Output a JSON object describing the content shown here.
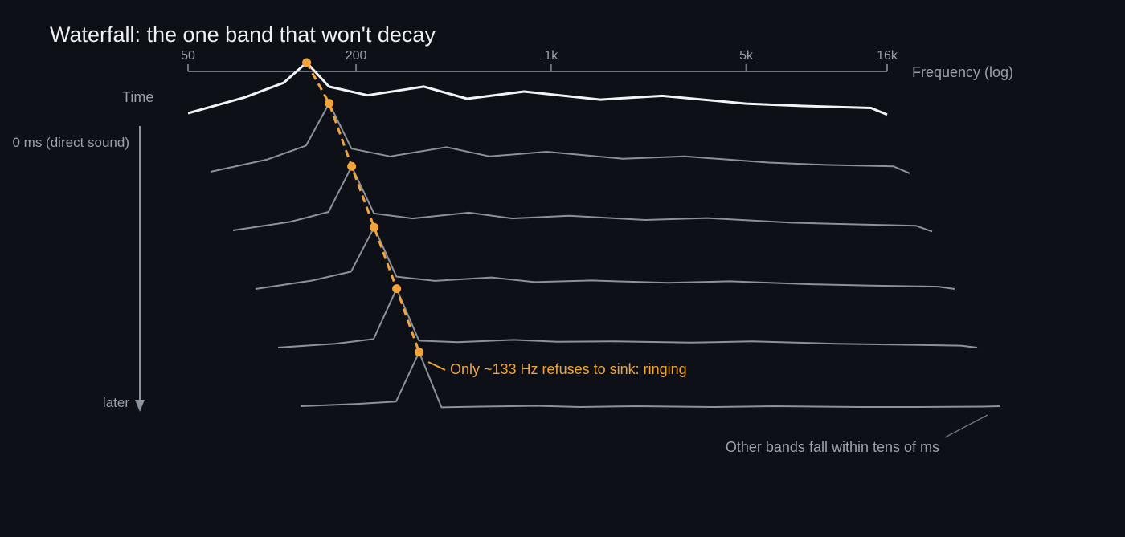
{
  "chart_data": {
    "type": "line",
    "title": "Waterfall: the one band that won't decay",
    "x_scale": "log",
    "x_axis_label": "Frequency (log)",
    "x_ticks": [
      "50",
      "200",
      "1k",
      "5k",
      "16k"
    ],
    "x_tick_values": [
      50,
      200,
      1000,
      5000,
      16000
    ],
    "xlim": [
      50,
      16000
    ],
    "y_axis_label": "Time",
    "time_start_label": "0 ms (direct sound)",
    "time_end_label": "later",
    "x": [
      50,
      80,
      110,
      133,
      160,
      220,
      350,
      500,
      800,
      1500,
      2500,
      5000,
      8000,
      14000,
      16000
    ],
    "series": [
      {
        "values": [
          0.0,
          0.55,
          1.05,
          1.75,
          0.92,
          0.62,
          0.92,
          0.5,
          0.75,
          0.47,
          0.6,
          0.33,
          0.25,
          0.18,
          -0.05
        ]
      },
      {
        "values": [
          0.0,
          0.32,
          0.68,
          1.78,
          0.6,
          0.4,
          0.64,
          0.4,
          0.52,
          0.34,
          0.4,
          0.24,
          0.18,
          0.14,
          -0.04
        ]
      },
      {
        "values": [
          0.0,
          0.22,
          0.48,
          1.66,
          0.44,
          0.31,
          0.46,
          0.31,
          0.38,
          0.27,
          0.32,
          0.2,
          0.16,
          0.12,
          -0.03
        ]
      },
      {
        "values": [
          0.0,
          0.22,
          0.45,
          1.6,
          0.32,
          0.21,
          0.3,
          0.18,
          0.22,
          0.16,
          0.2,
          0.12,
          0.09,
          0.06,
          0.0
        ]
      },
      {
        "values": [
          0.0,
          0.1,
          0.22,
          1.53,
          0.18,
          0.14,
          0.2,
          0.15,
          0.16,
          0.13,
          0.16,
          0.1,
          0.08,
          0.05,
          0.0
        ]
      },
      {
        "values": [
          0.0,
          0.06,
          0.12,
          1.4,
          -0.03,
          -0.01,
          0.01,
          -0.02,
          0.0,
          -0.02,
          0.0,
          -0.02,
          -0.02,
          -0.01,
          0.0
        ]
      }
    ],
    "highlight": {
      "frequency_hz": 133,
      "note": "Only ~133 Hz refuses to sink: ringing"
    },
    "other_note": "Other bands fall within tens of ms",
    "colors": {
      "background": "#0d1017",
      "front_slice": "#f2f3f5",
      "slices": "#8b929c",
      "axis": "#6b7280",
      "highlight": "#f2a43a",
      "text": "#9aa1ab",
      "title": "#eef0f3"
    }
  }
}
